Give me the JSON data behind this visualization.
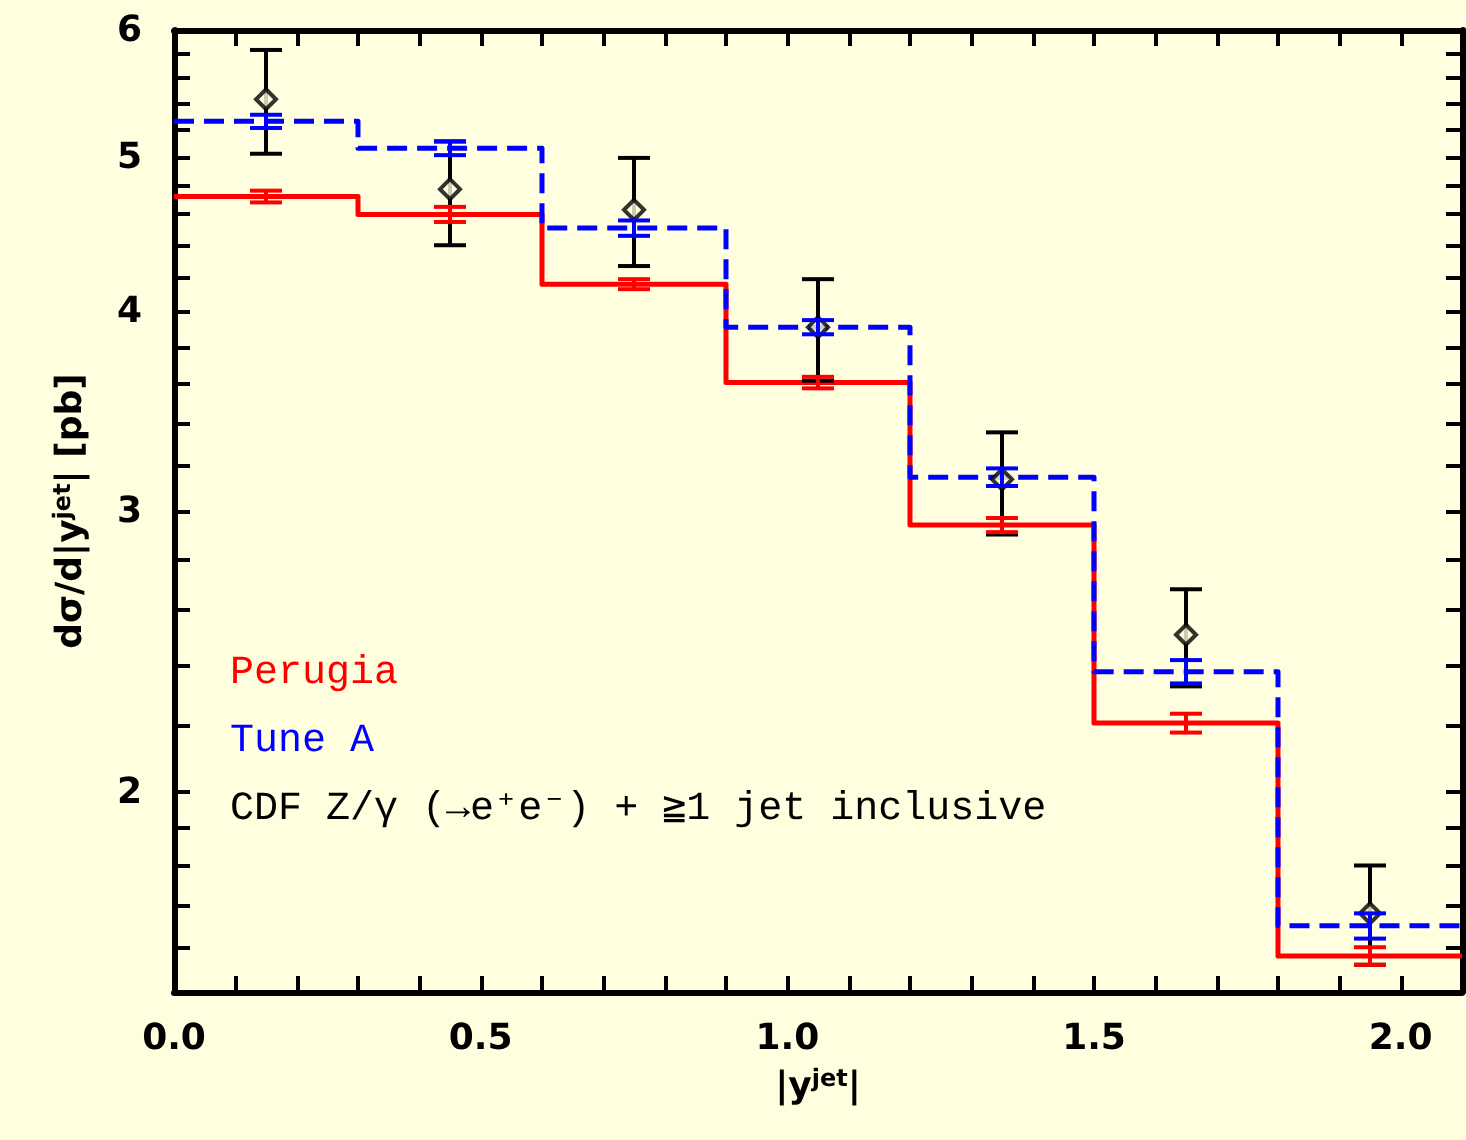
{
  "chart_data": {
    "type": "step",
    "xlabel": "|y$^{jet}$|",
    "ylabel": "dσ/d|y$^{jet}$| [pb]",
    "x": [
      0.15,
      0.45,
      0.75,
      1.05,
      1.35,
      1.65,
      1.95
    ],
    "series": [
      {
        "name": "Perugia",
        "color": "#ff0000",
        "line_style": "solid",
        "x": [
          0,
          0.15,
          0.45,
          0.75,
          1.05,
          1.35,
          1.65,
          1.95,
          2.1
        ],
        "values": [
          4.72,
          4.72,
          4.6,
          4.16,
          3.61,
          2.94,
          2.21,
          1.58,
          1.58
        ],
        "errors": [
          null,
          0.04,
          0.05,
          0.03,
          0.03,
          0.03,
          0.03,
          0.02,
          null
        ]
      },
      {
        "name": "Tune A",
        "color": "#0000ff",
        "line_style": "dashed",
        "x": [
          0,
          0.15,
          0.45,
          0.75,
          1.05,
          1.35,
          1.65,
          1.95,
          2.1
        ],
        "values": [
          5.26,
          5.26,
          5.06,
          4.51,
          3.91,
          3.15,
          2.38,
          1.65,
          1.65
        ],
        "errors": [
          null,
          0.05,
          0.05,
          0.05,
          0.04,
          0.04,
          0.04,
          0.03,
          null
        ]
      },
      {
        "name": "CDF Z/γ (→e⁺e⁻) + ≧1 jet inclusive",
        "type": "scatter",
        "color": "#000000",
        "marker": "diamond",
        "values": [
          5.43,
          4.77,
          4.63,
          3.91,
          3.14,
          2.51,
          1.68
        ],
        "errors": [
          [
            5.02,
            5.83
          ],
          [
            4.4,
            5.11
          ],
          [
            4.27,
            4.99
          ],
          [
            3.62,
            4.19
          ],
          [
            2.9,
            3.36
          ],
          [
            2.33,
            2.68
          ],
          [
            1.56,
            1.8
          ]
        ]
      }
    ],
    "xlim": [
      0,
      2.1
    ],
    "xticks": [
      {
        "value": 0,
        "label": "0.0"
      },
      {
        "value": 0.1,
        "label": null
      },
      {
        "value": 0.2,
        "label": null
      },
      {
        "value": 0.3,
        "label": null
      },
      {
        "value": 0.4,
        "label": null
      },
      {
        "value": 0.5,
        "label": "0.5"
      },
      {
        "value": 0.6,
        "label": null
      },
      {
        "value": 0.7,
        "label": null
      },
      {
        "value": 0.8,
        "label": null
      },
      {
        "value": 0.9,
        "label": null
      },
      {
        "value": 1,
        "label": "1.0"
      },
      {
        "value": 1.1,
        "label": null
      },
      {
        "value": 1.2,
        "label": null
      },
      {
        "value": 1.3,
        "label": null
      },
      {
        "value": 1.4,
        "label": null
      },
      {
        "value": 1.5,
        "label": "1.5"
      },
      {
        "value": 1.6,
        "label": null
      },
      {
        "value": 1.7,
        "label": null
      },
      {
        "value": 1.8,
        "label": null
      },
      {
        "value": 1.9,
        "label": null
      },
      {
        "value": 2,
        "label": "2.0"
      }
    ],
    "ylim": [
      1.5,
      6
    ],
    "log": "y",
    "yticks": [
      {
        "value": 1.6,
        "label": null
      },
      {
        "value": 1.7,
        "label": null
      },
      {
        "value": 1.8,
        "label": null
      },
      {
        "value": 1.9,
        "label": null
      },
      2,
      {
        "value": 2.2,
        "label": null
      },
      {
        "value": 2.4,
        "label": null
      },
      {
        "value": 2.6,
        "label": null
      },
      {
        "value": 2.8,
        "label": null
      },
      3,
      {
        "value": 3.2,
        "label": null
      },
      {
        "value": 3.4,
        "label": null
      },
      {
        "value": 3.6,
        "label": null
      },
      {
        "value": 3.8,
        "label": null
      },
      4,
      {
        "value": 4.2,
        "label": null
      },
      {
        "value": 4.4,
        "label": null
      },
      {
        "value": 4.6,
        "label": null
      },
      {
        "value": 4.8,
        "label": null
      },
      5,
      {
        "value": 5.2,
        "label": null
      },
      {
        "value": 5.4,
        "label": null
      },
      {
        "value": 5.6,
        "label": null
      },
      {
        "value": 5.8,
        "label": null
      },
      6
    ],
    "grid": false,
    "legend": "bottom left"
  }
}
